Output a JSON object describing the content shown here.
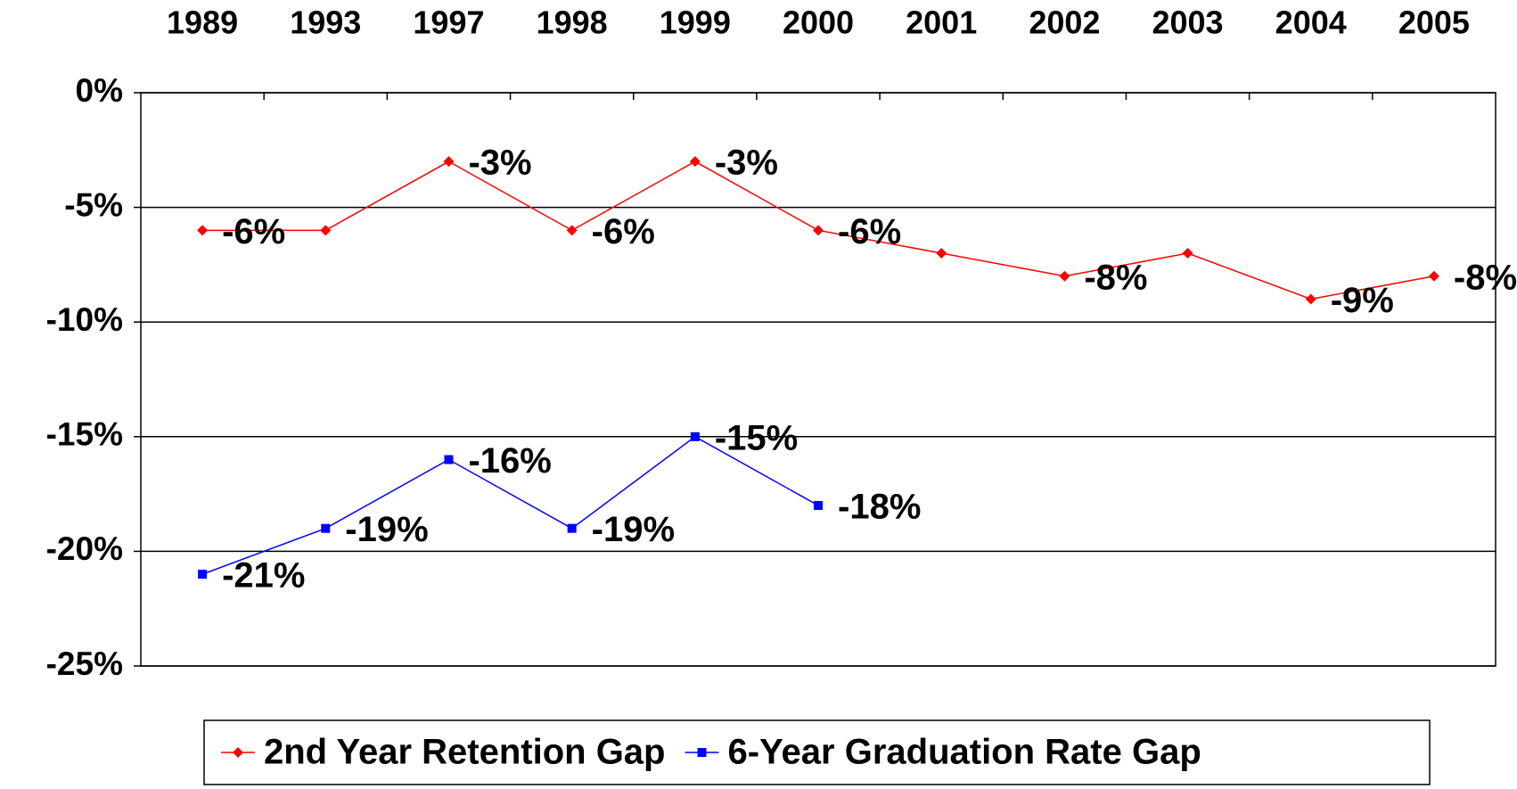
{
  "chart_data": {
    "type": "line",
    "categories": [
      "1989",
      "1993",
      "1997",
      "1998",
      "1999",
      "2000",
      "2001",
      "2002",
      "2003",
      "2004",
      "2005"
    ],
    "series": [
      {
        "name": "2nd Year Retention Gap",
        "color": "#ff0000",
        "marker": "diamond",
        "values": [
          -6,
          -6,
          -3,
          -6,
          -3,
          -6,
          -7,
          -8,
          -7,
          -9,
          -8
        ],
        "value_labels": [
          "-6%",
          null,
          "-3%",
          "-6%",
          "-3%",
          "-6%",
          null,
          "-8%",
          null,
          "-9%",
          "-8%"
        ]
      },
      {
        "name": "6-Year Graduation Rate Gap",
        "color": "#0000ff",
        "marker": "square",
        "values": [
          -21,
          -19,
          -16,
          -19,
          -15,
          -18,
          null,
          null,
          null,
          null,
          null
        ],
        "value_labels": [
          "-21%",
          "-19%",
          "-16%",
          "-19%",
          "-15%",
          "-18%",
          null,
          null,
          null,
          null,
          null
        ]
      }
    ],
    "ylim": [
      -25,
      0
    ],
    "yticks": [
      {
        "value": 0,
        "label": "0%"
      },
      {
        "value": -5,
        "label": "-5%"
      },
      {
        "value": -10,
        "label": "-10%"
      },
      {
        "value": -15,
        "label": "-15%"
      },
      {
        "value": -20,
        "label": "-20%"
      },
      {
        "value": -25,
        "label": "-25%"
      }
    ],
    "grid": true,
    "legend": "bottom"
  }
}
